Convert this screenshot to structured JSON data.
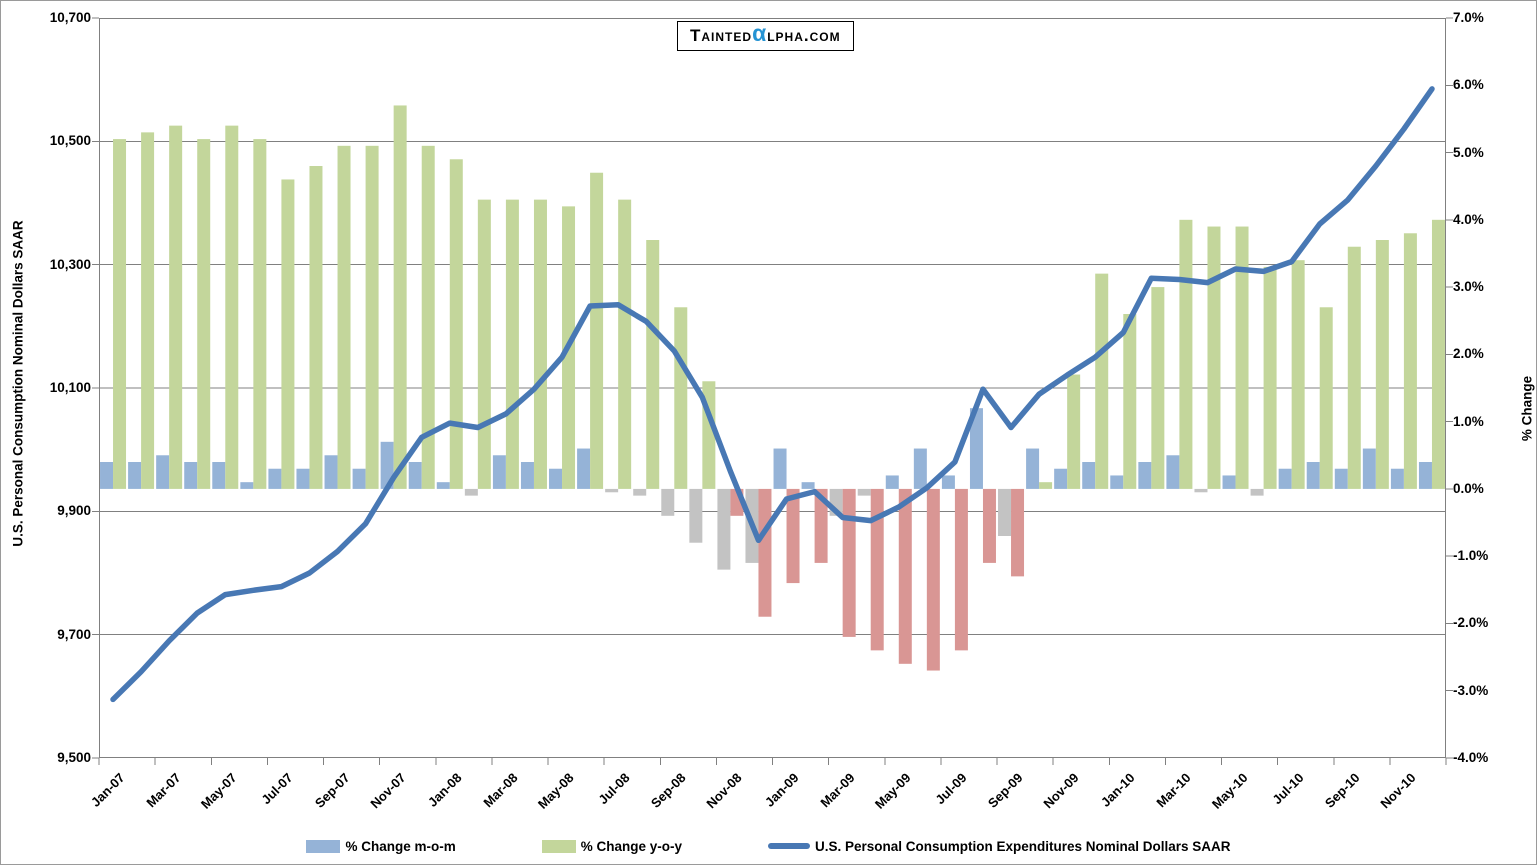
{
  "logo": {
    "prefix": "Tainted",
    "alpha": "α",
    "suffix": "lpha.com",
    "alpha_color": "#2593d3"
  },
  "left_axis": {
    "title": "U.S. Personal Consumption Nominal Dollars SAAR",
    "labels": [
      "10,700",
      "10,500",
      "10,300",
      "10,100",
      "9,900",
      "9,700",
      "9,500"
    ],
    "values": [
      10700,
      10500,
      10300,
      10100,
      9900,
      9700,
      9500
    ],
    "min": 9500,
    "max": 10700
  },
  "right_axis": {
    "title": "% Change",
    "labels": [
      "7.0%",
      "6.0%",
      "5.0%",
      "4.0%",
      "3.0%",
      "2.0%",
      "1.0%",
      "0.0%",
      "-1.0%",
      "-2.0%",
      "-3.0%",
      "-4.0%"
    ],
    "values": [
      7,
      6,
      5,
      4,
      3,
      2,
      1,
      0,
      -1,
      -2,
      -3,
      -4
    ],
    "min": -4,
    "max": 7
  },
  "x_axis": {
    "labels": [
      "Jan-07",
      "Mar-07",
      "May-07",
      "Jul-07",
      "Sep-07",
      "Nov-07",
      "Jan-08",
      "Mar-08",
      "May-08",
      "Jul-08",
      "Sep-08",
      "Nov-08",
      "Jan-09",
      "Mar-09",
      "May-09",
      "Jul-09",
      "Sep-09",
      "Nov-09",
      "Jan-10",
      "Mar-10",
      "May-10",
      "Jul-10",
      "Sep-10",
      "Nov-10"
    ]
  },
  "legend": {
    "items": [
      {
        "label": "% Change m-o-m",
        "swatch": "bar",
        "color_key": "mom_positive"
      },
      {
        "label": "% Change y-o-y",
        "swatch": "bar",
        "color_key": "yoy_positive"
      },
      {
        "label": "U.S. Personal Consumption Expenditures Nominal Dollars SAAR",
        "swatch": "line",
        "color_key": "line"
      }
    ]
  },
  "colors": {
    "mom_positive": "#95b3d7",
    "mom_negative": "#c3c3c3",
    "yoy_positive": "#c3d69b",
    "yoy_negative": "#d99694",
    "line": "#4878b4",
    "gridline": "#808080",
    "axis_border": "#808080",
    "logo_alpha": "#2593d3",
    "text": "#000000"
  },
  "chart_data": {
    "type": "combo bar + line",
    "gridline_values_left_axis": [
      10500,
      10300,
      10100,
      9900,
      9700
    ],
    "months": [
      "Jan-07",
      "Feb-07",
      "Mar-07",
      "Apr-07",
      "May-07",
      "Jun-07",
      "Jul-07",
      "Aug-07",
      "Sep-07",
      "Oct-07",
      "Nov-07",
      "Dec-07",
      "Jan-08",
      "Feb-08",
      "Mar-08",
      "Apr-08",
      "May-08",
      "Jun-08",
      "Jul-08",
      "Aug-08",
      "Sep-08",
      "Oct-08",
      "Nov-08",
      "Dec-08",
      "Jan-09",
      "Feb-09",
      "Mar-09",
      "Apr-09",
      "May-09",
      "Jun-09",
      "Jul-09",
      "Aug-09",
      "Sep-09",
      "Oct-09",
      "Nov-09",
      "Dec-09",
      "Jan-10",
      "Feb-10",
      "Mar-10",
      "Apr-10",
      "May-10",
      "Jun-10",
      "Jul-10",
      "Aug-10",
      "Sep-10",
      "Oct-10",
      "Nov-10",
      "Dec-10"
    ],
    "series": [
      {
        "name": "% Change m-o-m",
        "type": "bar",
        "axis": "right",
        "values": [
          0.4,
          0.4,
          0.5,
          0.4,
          0.4,
          0.1,
          0.3,
          0.3,
          0.5,
          0.3,
          0.7,
          0.4,
          0.1,
          -0.1,
          0.5,
          0.4,
          0.3,
          0.6,
          -0.05,
          -0.1,
          -0.4,
          -0.8,
          -1.2,
          -1.1,
          0.6,
          0.1,
          -0.4,
          -0.1,
          0.2,
          0.6,
          0.2,
          1.2,
          -0.7,
          0.6,
          0.3,
          0.4,
          0.2,
          0.4,
          0.5,
          -0.05,
          0.2,
          -0.1,
          0.3,
          0.4,
          0.3,
          0.6,
          0.3,
          0.4
        ]
      },
      {
        "name": "% Change y-o-y",
        "type": "bar",
        "axis": "right",
        "values": [
          5.2,
          5.3,
          5.4,
          5.2,
          5.4,
          5.2,
          4.6,
          4.8,
          5.1,
          5.1,
          5.7,
          5.1,
          4.9,
          4.3,
          4.3,
          4.3,
          4.2,
          4.7,
          4.3,
          3.7,
          2.7,
          1.6,
          -0.4,
          -1.9,
          -1.4,
          -1.1,
          -2.2,
          -2.4,
          -2.6,
          -2.7,
          -2.4,
          -1.1,
          -1.3,
          0.1,
          1.7,
          3.2,
          2.6,
          3.0,
          4.0,
          3.9,
          3.9,
          3.3,
          3.4,
          2.7,
          3.6,
          3.7,
          3.8,
          4.0
        ]
      },
      {
        "name": "U.S. Personal Consumption Expenditures Nominal Dollars SAAR",
        "type": "line",
        "axis": "left",
        "values": [
          9595,
          9640,
          9690,
          9735,
          9765,
          9772,
          9778,
          9800,
          9835,
          9880,
          9955,
          10020,
          10043,
          10036,
          10058,
          10098,
          10150,
          10233,
          10235,
          10208,
          10160,
          10085,
          9965,
          9853,
          9920,
          9932,
          9890,
          9885,
          9907,
          9938,
          9980,
          10098,
          10036,
          10090,
          10121,
          10150,
          10190,
          10278,
          10276,
          10271,
          10293,
          10289,
          10305,
          10366,
          10405,
          10460,
          10520,
          10585
        ]
      }
    ],
    "left_axis_range": [
      9500,
      10700
    ],
    "right_axis_range": [
      -4,
      7
    ],
    "grid": "horizontal only",
    "legend_position": "bottom"
  }
}
